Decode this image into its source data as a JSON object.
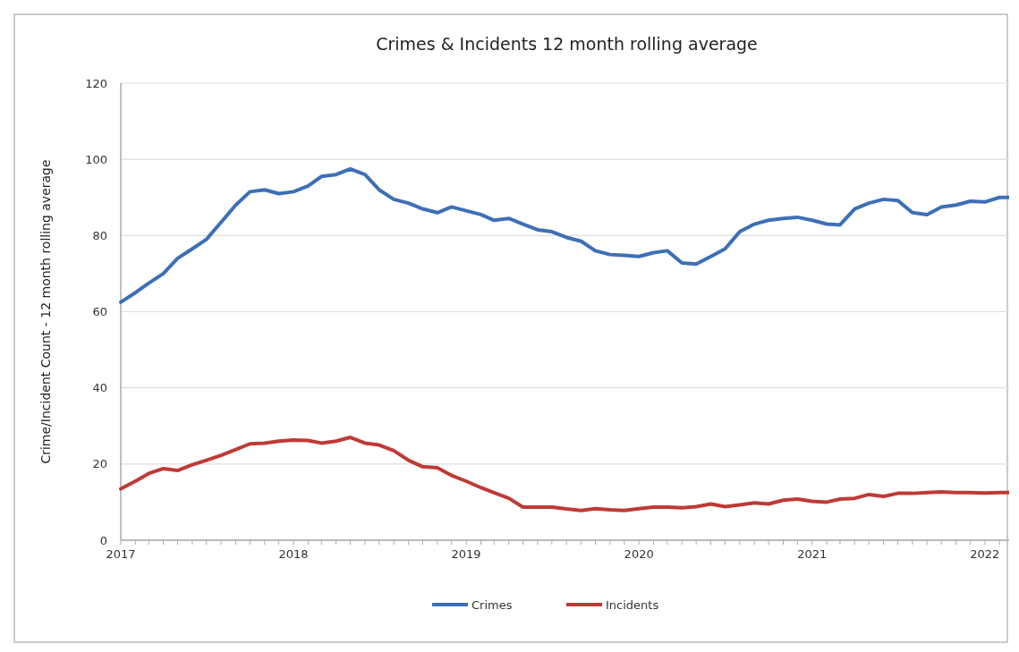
{
  "chart_data": {
    "type": "line",
    "title": "Crimes & Incidents 12 month rolling average",
    "ylabel": "Crime/Incident Count - 12 month rolling average",
    "x": [
      "2017-01",
      "2017-02",
      "2017-03",
      "2017-04",
      "2017-05",
      "2017-06",
      "2017-07",
      "2017-08",
      "2017-09",
      "2017-10",
      "2017-11",
      "2017-12",
      "2018-01",
      "2018-02",
      "2018-03",
      "2018-04",
      "2018-05",
      "2018-06",
      "2018-07",
      "2018-08",
      "2018-09",
      "2018-10",
      "2018-11",
      "2018-12",
      "2019-01",
      "2019-02",
      "2019-03",
      "2019-04",
      "2019-05",
      "2019-06",
      "2019-07",
      "2019-08",
      "2019-09",
      "2019-10",
      "2019-11",
      "2019-12",
      "2020-01",
      "2020-02",
      "2020-03",
      "2020-04",
      "2020-05",
      "2020-06",
      "2020-07",
      "2020-08",
      "2020-09",
      "2020-10",
      "2020-11",
      "2020-12",
      "2021-01",
      "2021-02",
      "2021-03",
      "2021-04",
      "2021-05",
      "2021-06",
      "2021-07",
      "2021-08",
      "2021-09",
      "2021-10",
      "2021-11",
      "2021-12",
      "2022-01",
      "2022-02",
      "2022-03"
    ],
    "series": [
      {
        "name": "Crimes",
        "color": "#3d6fb6",
        "values": [
          62.5,
          65,
          67.5,
          70,
          74,
          76.5,
          79,
          83.5,
          88,
          91.5,
          92,
          91,
          91.5,
          93,
          95.5,
          96,
          97.5,
          96,
          92,
          89.5,
          88.5,
          87,
          86,
          87.5,
          86.5,
          85.5,
          84,
          84.5,
          83,
          81.5,
          81,
          79.5,
          78.5,
          76,
          75,
          74.8,
          74.5,
          75.5,
          76,
          72.8,
          72.5,
          74.5,
          76.5,
          81,
          83,
          84,
          84.5,
          84.8,
          84,
          83,
          82.8,
          87,
          88.5,
          89.5,
          89.2,
          86,
          85.5,
          87.5,
          88,
          89,
          88.8,
          90,
          90
        ]
      },
      {
        "name": "Incidents",
        "color": "#be3a36",
        "values": [
          13.5,
          15.5,
          17.5,
          18.8,
          18.3,
          19.8,
          21,
          22.3,
          23.8,
          25.3,
          25.5,
          26,
          26.3,
          26.2,
          25.5,
          26,
          27,
          25.5,
          25,
          23.5,
          21,
          19.3,
          19,
          17,
          15.5,
          13.8,
          12.5,
          11,
          8.7,
          8.7,
          8.7,
          8.2,
          7.8,
          8.3,
          8,
          7.8,
          8.3,
          8.7,
          8.7,
          8.5,
          8.8,
          9.5,
          8.8,
          9.3,
          9.8,
          9.5,
          10.5,
          10.8,
          10.2,
          10,
          10.8,
          11,
          12,
          11.5,
          12.3,
          12.3,
          12.5,
          12.7,
          12.5,
          12.5,
          12.4,
          12.5,
          12.5
        ]
      }
    ],
    "xlim": [
      "2017-01",
      "2022-03"
    ],
    "xticks": [
      {
        "value": "2017-01",
        "label": "2017"
      },
      {
        "value": "2018-01",
        "label": "2018"
      },
      {
        "value": "2019-01",
        "label": "2019"
      },
      {
        "value": "2020-01",
        "label": "2020"
      },
      {
        "value": "2021-01",
        "label": "2021"
      },
      {
        "value": "2022-01",
        "label": "2022"
      }
    ],
    "ylim": [
      0,
      120
    ],
    "yticks": [
      0,
      20,
      40,
      60,
      80,
      100,
      120
    ],
    "grid": "y",
    "legend": "bottom",
    "marker": "none",
    "line_style": "solid"
  }
}
